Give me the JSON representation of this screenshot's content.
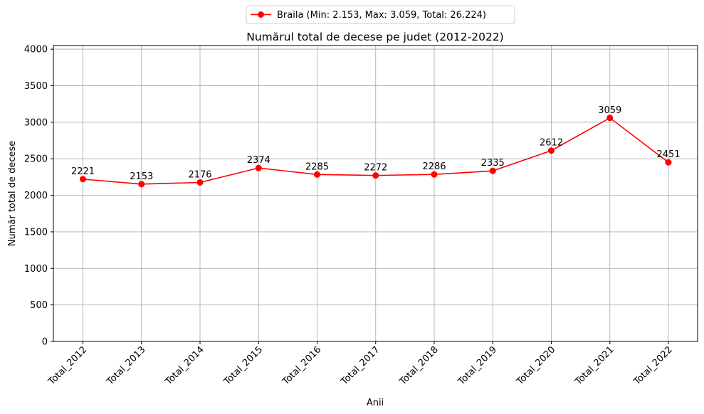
{
  "chart_data": {
    "type": "line",
    "title": "Numărul total de decese pe judet (2012-2022)",
    "xlabel": "Anii",
    "ylabel": "Număr total de decese",
    "categories": [
      "Total_2012",
      "Total_2013",
      "Total_2014",
      "Total_2015",
      "Total_2016",
      "Total_2017",
      "Total_2018",
      "Total_2019",
      "Total_2020",
      "Total_2021",
      "Total_2022"
    ],
    "series": [
      {
        "name": "Braila (Min: 2.153, Max: 3.059, Total: 26.224)",
        "values": [
          2221,
          2153,
          2176,
          2374,
          2285,
          2272,
          2286,
          2335,
          2612,
          3059,
          2451
        ],
        "color": "#ff0000"
      }
    ],
    "ylim": [
      0,
      4050
    ],
    "yticks": [
      0,
      500,
      1000,
      1500,
      2000,
      2500,
      3000,
      3500,
      4000
    ],
    "grid": true,
    "legend_position": "top-center (above plot)",
    "data_labels": true
  }
}
